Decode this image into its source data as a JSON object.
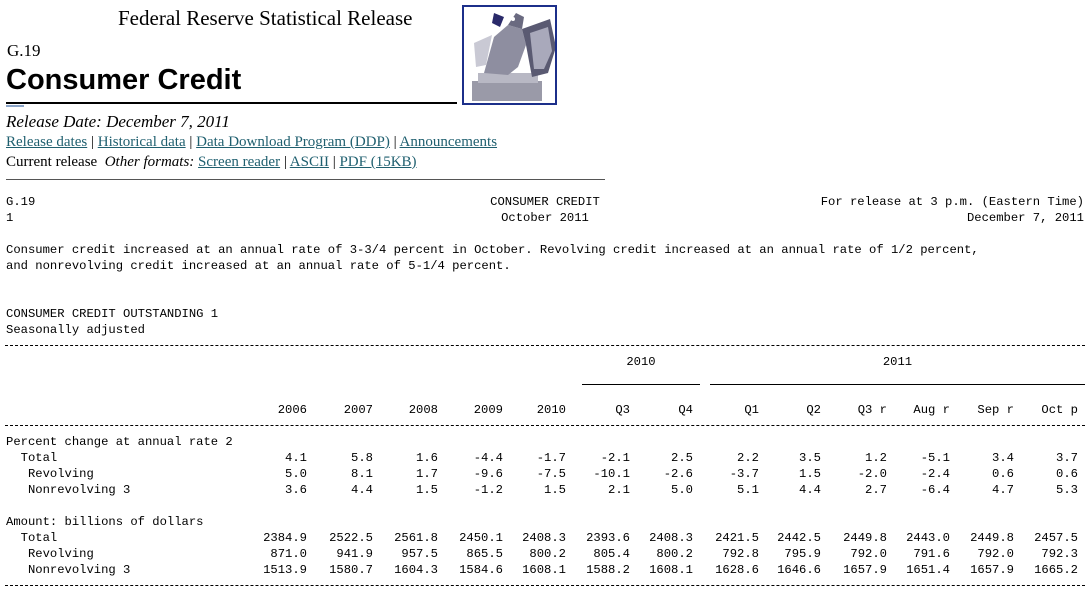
{
  "header": {
    "agency": "Federal Reserve Statistical Release",
    "release_code": "G.19",
    "title": "Consumer Credit",
    "release_date": "Release Date: December 7, 2011"
  },
  "nav": {
    "links": [
      "Release dates",
      "Historical data",
      "Data Download Program (DDP)",
      "Announcements"
    ],
    "current_release": "Current release",
    "other_formats": "Other formats:",
    "format_links": [
      "Screen reader",
      "ASCII",
      "PDF (15KB)"
    ]
  },
  "report": {
    "top_left_1": "G.19",
    "top_left_2": "1",
    "top_center_1": "CONSUMER CREDIT",
    "top_center_2": "October 2011",
    "top_right_1": "For release at 3 p.m. (Eastern Time)",
    "top_right_2": "December 7, 2011",
    "summary_1": "Consumer credit increased at an annual rate of 3-3/4 percent in October. Revolving credit increased at an annual rate of 1/2 percent,",
    "summary_2": "and nonrevolving credit increased at an annual rate of 5-1/4 percent.",
    "table_title": "CONSUMER CREDIT OUTSTANDING 1",
    "table_subtitle": "Seasonally adjusted"
  },
  "table": {
    "year_groups": [
      "2010",
      "2011"
    ],
    "columns": [
      "2006",
      "2007",
      "2008",
      "2009",
      "2010",
      "Q3",
      "Q4",
      "Q1",
      "Q2",
      "Q3 r",
      "Aug r",
      "Sep r",
      "Oct p"
    ],
    "sections": [
      {
        "heading": "Percent change at annual rate 2",
        "rows": [
          {
            "label": "  Total",
            "values": [
              "4.1",
              "5.8",
              "1.6",
              "-4.4",
              "-1.7",
              "-2.1",
              "2.5",
              "2.2",
              "3.5",
              "1.2",
              "-5.1",
              "3.4",
              "3.7"
            ]
          },
          {
            "label": "   Revolving",
            "values": [
              "5.0",
              "8.1",
              "1.7",
              "-9.6",
              "-7.5",
              "-10.1",
              "-2.6",
              "-3.7",
              "1.5",
              "-2.0",
              "-2.4",
              "0.6",
              "0.6"
            ]
          },
          {
            "label": "   Nonrevolving 3",
            "values": [
              "3.6",
              "4.4",
              "1.5",
              "-1.2",
              "1.5",
              "2.1",
              "5.0",
              "5.1",
              "4.4",
              "2.7",
              "-6.4",
              "4.7",
              "5.3"
            ]
          }
        ]
      },
      {
        "heading": "Amount: billions of dollars",
        "rows": [
          {
            "label": "  Total",
            "values": [
              "2384.9",
              "2522.5",
              "2561.8",
              "2450.1",
              "2408.3",
              "2393.6",
              "2408.3",
              "2421.5",
              "2442.5",
              "2449.8",
              "2443.0",
              "2449.8",
              "2457.5"
            ]
          },
          {
            "label": "   Revolving",
            "values": [
              "871.0",
              "941.9",
              "957.5",
              "865.5",
              "800.2",
              "805.4",
              "800.2",
              "792.8",
              "795.9",
              "792.0",
              "791.6",
              "792.0",
              "792.3"
            ]
          },
          {
            "label": "   Nonrevolving 3",
            "values": [
              "1513.9",
              "1580.7",
              "1604.3",
              "1584.6",
              "1608.1",
              "1588.2",
              "1608.1",
              "1628.6",
              "1646.6",
              "1657.9",
              "1651.4",
              "1657.9",
              "1665.2"
            ]
          }
        ]
      }
    ]
  }
}
